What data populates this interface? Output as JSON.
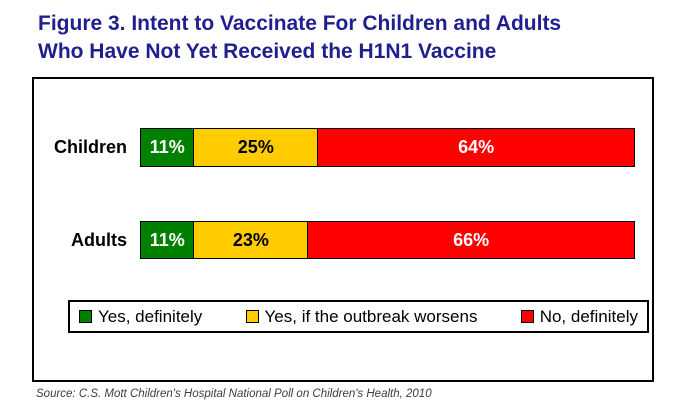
{
  "figure": {
    "title_line1": "Figure 3. Intent to Vaccinate For Children and Adults",
    "title_line2": "Who Have Not Yet Received the H1N1 Vaccine",
    "title_color": "#1F1F8F",
    "source": "Source: C.S. Mott Children's Hospital National Poll on Children's Health, 2010"
  },
  "chart_data": {
    "type": "bar",
    "orientation": "horizontal",
    "stacked": true,
    "categories": [
      "Children",
      "Adults"
    ],
    "series": [
      {
        "name": "Yes, definitely",
        "color": "#008000",
        "label_color": "#FFFFFF",
        "values": [
          11,
          11
        ]
      },
      {
        "name": "Yes, if the outbreak worsens",
        "color": "#FFCC00",
        "label_color": "#000000",
        "values": [
          25,
          23
        ]
      },
      {
        "name": "No, definitely",
        "color": "#FF0000",
        "label_color": "#FFFFFF",
        "values": [
          64,
          66
        ]
      }
    ],
    "value_suffix": "%",
    "data_labels": [
      "11%",
      "25%",
      "64%",
      "11%",
      "23%",
      "66%"
    ],
    "xlim": [
      0,
      100
    ],
    "grid": false,
    "legend_position": "bottom-inside-boxed"
  }
}
